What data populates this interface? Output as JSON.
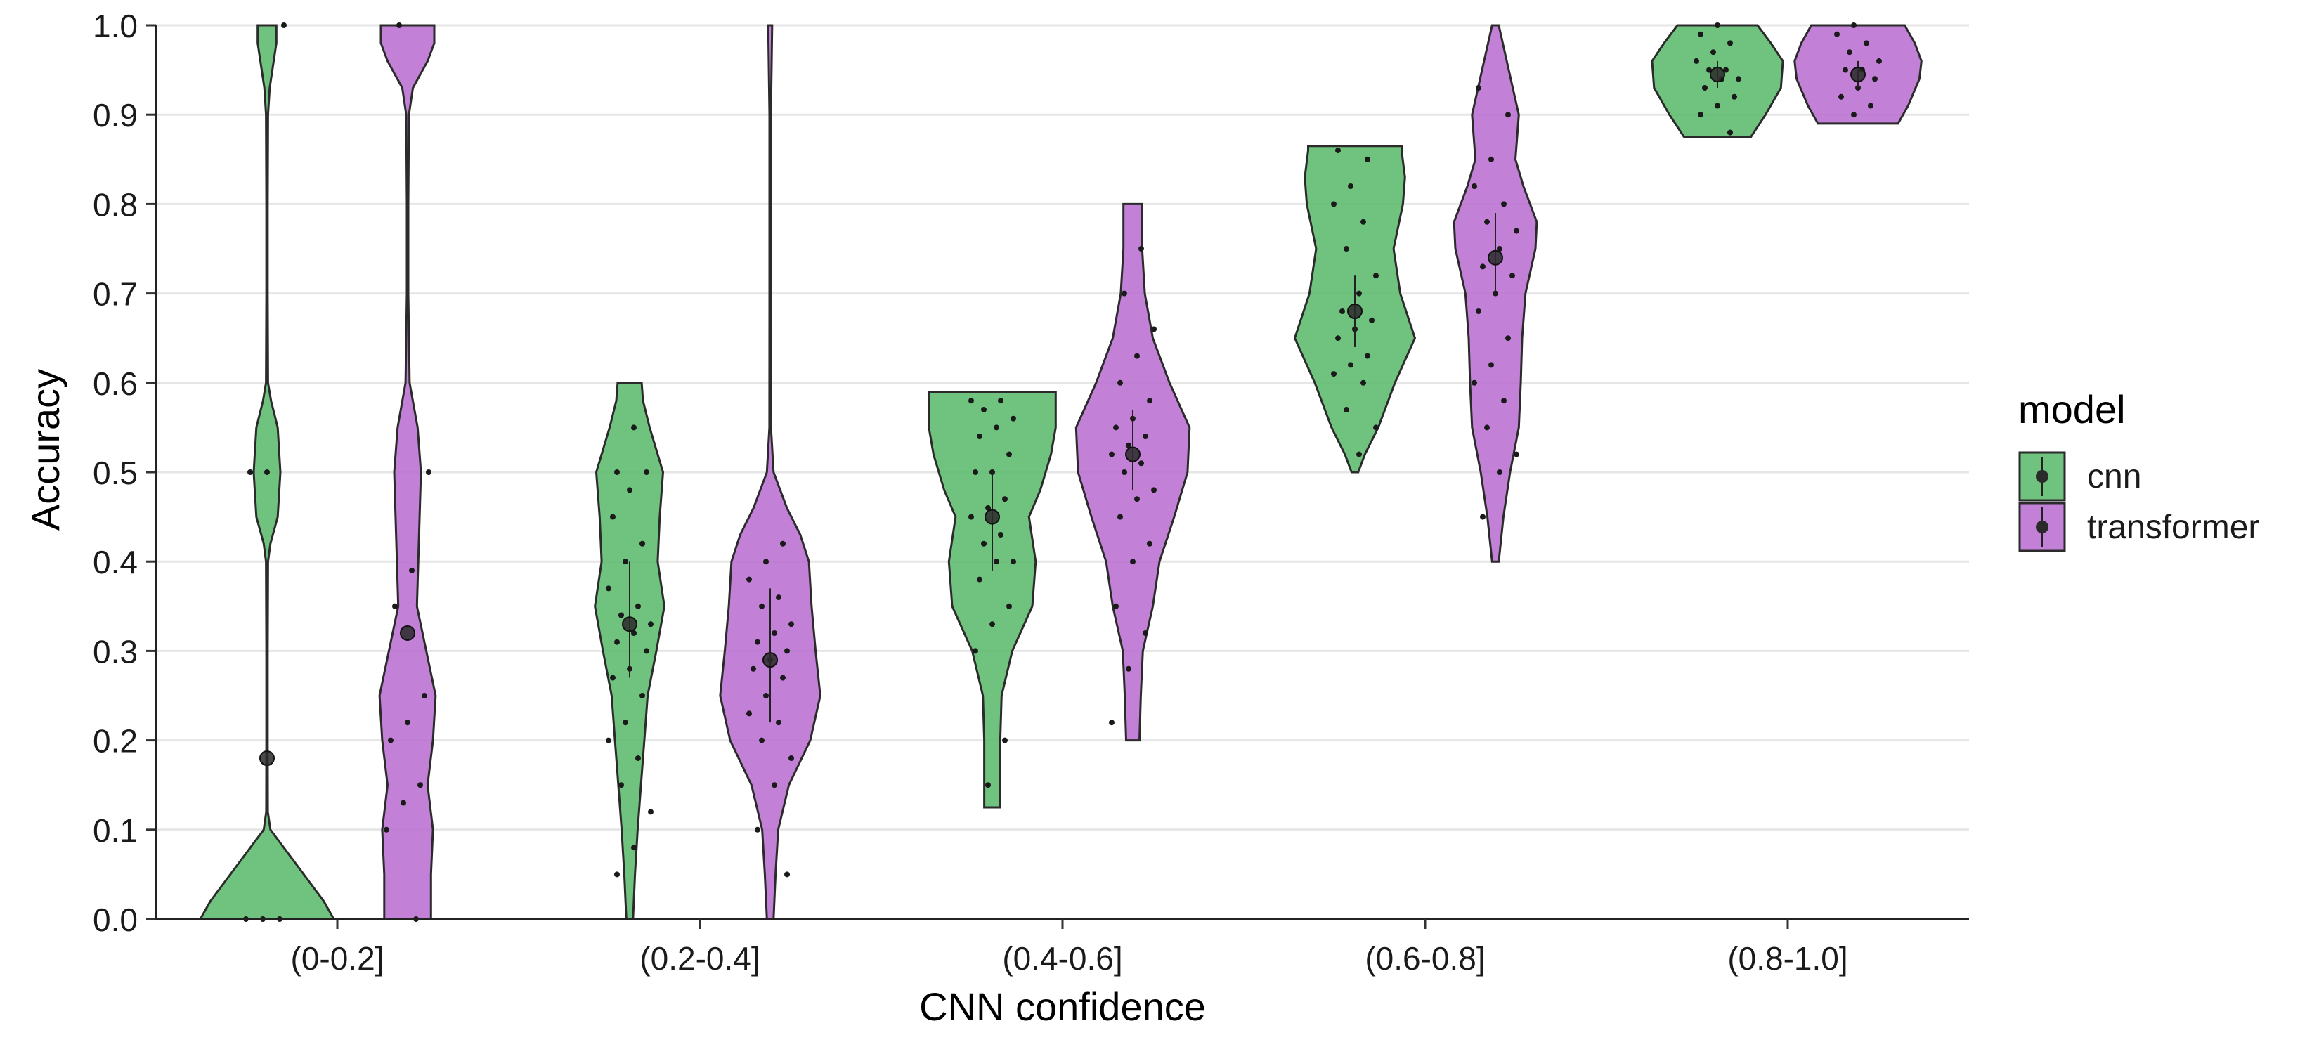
{
  "chart_data": {
    "type": "violin",
    "title": "",
    "xlabel": "CNN confidence",
    "ylabel": "Accuracy",
    "ylim": [
      0,
      1
    ],
    "yticks": [
      0.0,
      0.1,
      0.2,
      0.3,
      0.4,
      0.5,
      0.6,
      0.7,
      0.8,
      0.9,
      1.0
    ],
    "ytick_labels": [
      "0.0",
      "0.1",
      "0.2",
      "0.3",
      "0.4",
      "0.5",
      "0.6",
      "0.7",
      "0.8",
      "0.9",
      "1.0"
    ],
    "categories": [
      "(0-0.2]",
      "(0.2-0.4]",
      "(0.4-0.6]",
      "(0.6-0.8]",
      "(0.8-1.0]"
    ],
    "grid": "horizontal",
    "legend": {
      "title": "model",
      "position": "right"
    },
    "series": [
      {
        "name": "cnn",
        "color": "#5cb96d",
        "groups": [
          {
            "category": "(0-0.2]",
            "ymin": 0.0,
            "ymax": 1.0,
            "mean": 0.18,
            "lower": 0.18,
            "upper": 0.18,
            "profile": [
              [
                0.0,
                1.0
              ],
              [
                0.02,
                0.85
              ],
              [
                0.05,
                0.55
              ],
              [
                0.08,
                0.25
              ],
              [
                0.1,
                0.05
              ],
              [
                0.12,
                0.012
              ],
              [
                0.2,
                0.01
              ],
              [
                0.3,
                0.01
              ],
              [
                0.4,
                0.015
              ],
              [
                0.42,
                0.05
              ],
              [
                0.45,
                0.16
              ],
              [
                0.5,
                0.2
              ],
              [
                0.55,
                0.16
              ],
              [
                0.58,
                0.06
              ],
              [
                0.6,
                0.015
              ],
              [
                0.7,
                0.01
              ],
              [
                0.8,
                0.01
              ],
              [
                0.9,
                0.015
              ],
              [
                0.93,
                0.04
              ],
              [
                0.96,
                0.1
              ],
              [
                0.98,
                0.14
              ],
              [
                1.0,
                0.14
              ]
            ],
            "points": [
              0,
              0,
              0,
              0.5,
              0.5,
              1.0
            ]
          },
          {
            "category": "(0.2-0.4]",
            "ymin": 0.0,
            "ymax": 0.6,
            "mean": 0.33,
            "lower": 0.27,
            "upper": 0.4,
            "profile": [
              [
                0.0,
                0.05
              ],
              [
                0.05,
                0.08
              ],
              [
                0.1,
                0.12
              ],
              [
                0.15,
                0.17
              ],
              [
                0.2,
                0.22
              ],
              [
                0.25,
                0.27
              ],
              [
                0.3,
                0.4
              ],
              [
                0.35,
                0.52
              ],
              [
                0.4,
                0.42
              ],
              [
                0.45,
                0.45
              ],
              [
                0.5,
                0.5
              ],
              [
                0.52,
                0.42
              ],
              [
                0.55,
                0.3
              ],
              [
                0.58,
                0.2
              ],
              [
                0.6,
                0.18
              ]
            ],
            "points": [
              0.05,
              0.08,
              0.12,
              0.15,
              0.18,
              0.2,
              0.22,
              0.25,
              0.27,
              0.28,
              0.3,
              0.31,
              0.32,
              0.33,
              0.34,
              0.35,
              0.37,
              0.4,
              0.42,
              0.45,
              0.48,
              0.5,
              0.5,
              0.55
            ]
          },
          {
            "category": "(0.4-0.6]",
            "ymin": 0.125,
            "ymax": 0.59,
            "mean": 0.45,
            "lower": 0.39,
            "upper": 0.5,
            "profile": [
              [
                0.125,
                0.12
              ],
              [
                0.15,
                0.12
              ],
              [
                0.2,
                0.12
              ],
              [
                0.25,
                0.14
              ],
              [
                0.3,
                0.3
              ],
              [
                0.35,
                0.6
              ],
              [
                0.4,
                0.65
              ],
              [
                0.45,
                0.55
              ],
              [
                0.48,
                0.72
              ],
              [
                0.52,
                0.88
              ],
              [
                0.55,
                0.95
              ],
              [
                0.58,
                0.95
              ],
              [
                0.59,
                0.95
              ]
            ],
            "points": [
              0.15,
              0.2,
              0.3,
              0.33,
              0.35,
              0.38,
              0.4,
              0.4,
              0.42,
              0.43,
              0.45,
              0.46,
              0.47,
              0.5,
              0.5,
              0.52,
              0.54,
              0.55,
              0.56,
              0.57,
              0.58,
              0.58
            ]
          },
          {
            "category": "(0.6-0.8]",
            "ymin": 0.5,
            "ymax": 0.865,
            "mean": 0.68,
            "lower": 0.64,
            "upper": 0.72,
            "profile": [
              [
                0.5,
                0.05
              ],
              [
                0.52,
                0.15
              ],
              [
                0.55,
                0.35
              ],
              [
                0.6,
                0.6
              ],
              [
                0.65,
                0.9
              ],
              [
                0.7,
                0.68
              ],
              [
                0.75,
                0.58
              ],
              [
                0.8,
                0.72
              ],
              [
                0.83,
                0.75
              ],
              [
                0.86,
                0.7
              ],
              [
                0.865,
                0.7
              ]
            ],
            "points": [
              0.52,
              0.55,
              0.57,
              0.6,
              0.61,
              0.62,
              0.63,
              0.65,
              0.66,
              0.67,
              0.68,
              0.7,
              0.72,
              0.75,
              0.78,
              0.8,
              0.82,
              0.85,
              0.86
            ]
          },
          {
            "category": "(0.8-1.0]",
            "ymin": 0.875,
            "ymax": 1.0,
            "mean": 0.945,
            "lower": 0.93,
            "upper": 0.96,
            "profile": [
              [
                0.875,
                0.5
              ],
              [
                0.9,
                0.72
              ],
              [
                0.93,
                0.95
              ],
              [
                0.96,
                0.98
              ],
              [
                0.98,
                0.8
              ],
              [
                1.0,
                0.6
              ]
            ],
            "points": [
              0.88,
              0.9,
              0.91,
              0.92,
              0.93,
              0.94,
              0.94,
              0.95,
              0.95,
              0.96,
              0.97,
              0.98,
              0.99,
              1.0
            ]
          }
        ]
      },
      {
        "name": "transformer",
        "color": "#b96fd1",
        "groups": [
          {
            "category": "(0-0.2]",
            "ymin": 0.0,
            "ymax": 1.0,
            "mean": 0.32,
            "lower": 0.32,
            "upper": 0.32,
            "profile": [
              [
                0.0,
                0.35
              ],
              [
                0.05,
                0.35
              ],
              [
                0.1,
                0.38
              ],
              [
                0.15,
                0.3
              ],
              [
                0.2,
                0.38
              ],
              [
                0.25,
                0.42
              ],
              [
                0.3,
                0.28
              ],
              [
                0.35,
                0.14
              ],
              [
                0.4,
                0.16
              ],
              [
                0.45,
                0.18
              ],
              [
                0.5,
                0.2
              ],
              [
                0.55,
                0.15
              ],
              [
                0.6,
                0.03
              ],
              [
                0.7,
                0.01
              ],
              [
                0.8,
                0.01
              ],
              [
                0.9,
                0.02
              ],
              [
                0.93,
                0.08
              ],
              [
                0.96,
                0.3
              ],
              [
                0.98,
                0.4
              ],
              [
                1.0,
                0.4
              ]
            ],
            "points": [
              0,
              0.1,
              0.13,
              0.15,
              0.2,
              0.22,
              0.25,
              0.35,
              0.39,
              0.5,
              1.0
            ]
          },
          {
            "category": "(0.2-0.4]",
            "ymin": 0.0,
            "ymax": 1.0,
            "mean": 0.29,
            "lower": 0.22,
            "upper": 0.37,
            "profile": [
              [
                0.0,
                0.05
              ],
              [
                0.05,
                0.08
              ],
              [
                0.1,
                0.12
              ],
              [
                0.15,
                0.28
              ],
              [
                0.2,
                0.6
              ],
              [
                0.25,
                0.75
              ],
              [
                0.3,
                0.68
              ],
              [
                0.35,
                0.62
              ],
              [
                0.4,
                0.58
              ],
              [
                0.43,
                0.45
              ],
              [
                0.46,
                0.25
              ],
              [
                0.5,
                0.05
              ],
              [
                0.55,
                0.012
              ],
              [
                0.7,
                0.01
              ],
              [
                0.9,
                0.01
              ],
              [
                0.95,
                0.02
              ],
              [
                1.0,
                0.03
              ]
            ],
            "points": [
              0.05,
              0.1,
              0.15,
              0.18,
              0.2,
              0.22,
              0.23,
              0.25,
              0.27,
              0.28,
              0.29,
              0.3,
              0.31,
              0.32,
              0.33,
              0.35,
              0.36,
              0.38,
              0.4,
              0.42
            ]
          },
          {
            "category": "(0.4-0.6]",
            "ymin": 0.2,
            "ymax": 0.8,
            "mean": 0.52,
            "lower": 0.48,
            "upper": 0.57,
            "profile": [
              [
                0.2,
                0.1
              ],
              [
                0.25,
                0.12
              ],
              [
                0.3,
                0.15
              ],
              [
                0.35,
                0.3
              ],
              [
                0.4,
                0.4
              ],
              [
                0.45,
                0.62
              ],
              [
                0.5,
                0.82
              ],
              [
                0.55,
                0.85
              ],
              [
                0.6,
                0.55
              ],
              [
                0.65,
                0.3
              ],
              [
                0.7,
                0.18
              ],
              [
                0.75,
                0.14
              ],
              [
                0.8,
                0.14
              ]
            ],
            "points": [
              0.22,
              0.28,
              0.32,
              0.35,
              0.4,
              0.42,
              0.45,
              0.47,
              0.48,
              0.5,
              0.51,
              0.52,
              0.53,
              0.54,
              0.55,
              0.56,
              0.58,
              0.6,
              0.63,
              0.66,
              0.7,
              0.75
            ]
          },
          {
            "category": "(0.6-0.8]",
            "ymin": 0.4,
            "ymax": 1.0,
            "mean": 0.74,
            "lower": 0.7,
            "upper": 0.79,
            "profile": [
              [
                0.4,
                0.05
              ],
              [
                0.45,
                0.12
              ],
              [
                0.5,
                0.22
              ],
              [
                0.55,
                0.35
              ],
              [
                0.6,
                0.38
              ],
              [
                0.65,
                0.4
              ],
              [
                0.7,
                0.45
              ],
              [
                0.75,
                0.6
              ],
              [
                0.78,
                0.62
              ],
              [
                0.82,
                0.42
              ],
              [
                0.85,
                0.3
              ],
              [
                0.9,
                0.35
              ],
              [
                0.95,
                0.2
              ],
              [
                1.0,
                0.05
              ]
            ],
            "points": [
              0.45,
              0.5,
              0.52,
              0.55,
              0.58,
              0.6,
              0.62,
              0.65,
              0.68,
              0.7,
              0.72,
              0.73,
              0.75,
              0.77,
              0.78,
              0.8,
              0.82,
              0.85,
              0.9,
              0.93
            ]
          },
          {
            "category": "(0.8-1.0]",
            "ymin": 0.89,
            "ymax": 1.0,
            "mean": 0.945,
            "lower": 0.93,
            "upper": 0.96,
            "profile": [
              [
                0.89,
                0.6
              ],
              [
                0.91,
                0.75
              ],
              [
                0.94,
                0.92
              ],
              [
                0.96,
                0.95
              ],
              [
                0.98,
                0.85
              ],
              [
                1.0,
                0.7
              ]
            ],
            "points": [
              0.9,
              0.91,
              0.92,
              0.93,
              0.94,
              0.95,
              0.95,
              0.96,
              0.97,
              0.98,
              0.99,
              1.0
            ]
          }
        ]
      }
    ]
  }
}
